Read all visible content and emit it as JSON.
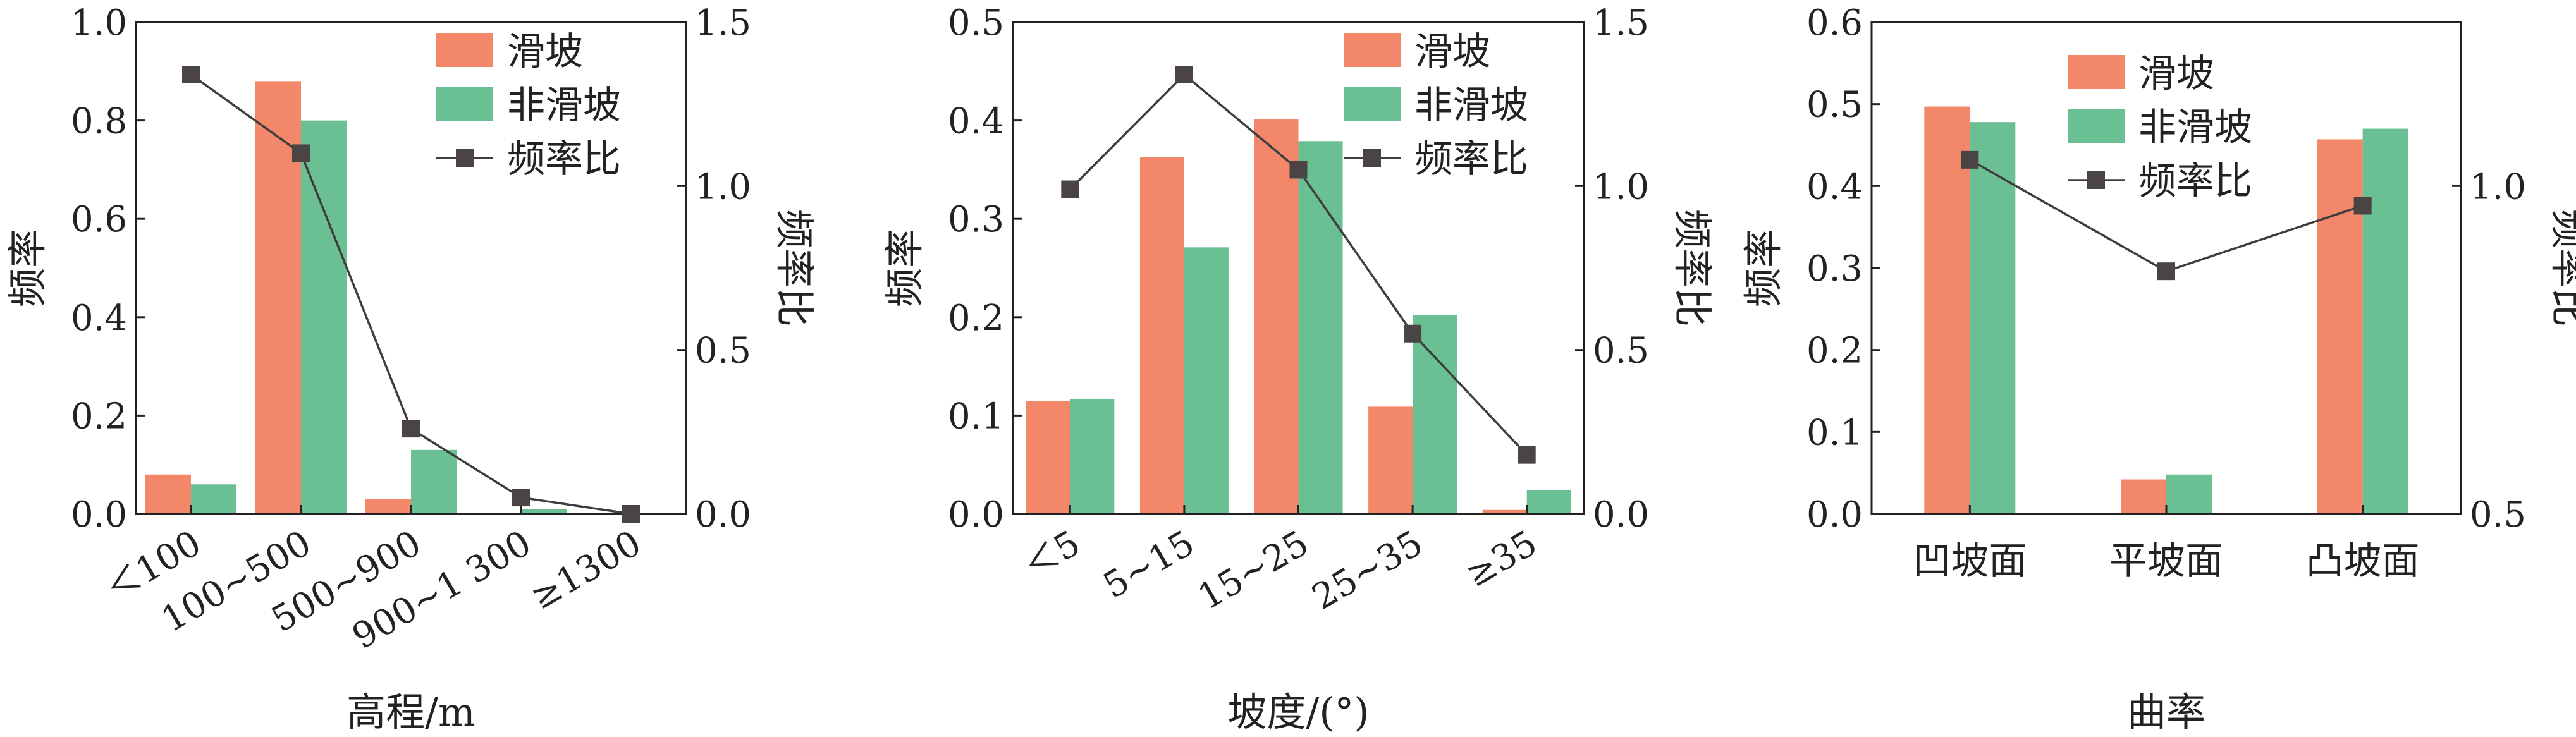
{
  "colors": {
    "landslide": "#F2876A",
    "non_landslide": "#6ABF93",
    "ratio_line": "#3d3d3d",
    "ratio_marker": "#4a4444",
    "axis": "#222222"
  },
  "chart_data": [
    {
      "type": "bar",
      "xlabel": "高程/m",
      "ylabel": "频率",
      "y2label": "频率比",
      "ylim": [
        0,
        1.0
      ],
      "yticks": [
        "0.0",
        "0.2",
        "0.4",
        "0.6",
        "0.8",
        "1.0"
      ],
      "y2lim": [
        0,
        1.5
      ],
      "y2ticks": [
        "0.0",
        "0.5",
        "1.0",
        "1.5"
      ],
      "categories": [
        "＜100",
        "100~500",
        "500~900",
        "900~1 300",
        "≥1300"
      ],
      "tick_rotation": -30,
      "legend_position": "top-right",
      "series": [
        {
          "name": "滑坡",
          "kind": "bar",
          "axis": "left",
          "values": [
            0.08,
            0.88,
            0.03,
            0.0,
            0.0
          ]
        },
        {
          "name": "非滑坡",
          "kind": "bar",
          "axis": "left",
          "values": [
            0.06,
            0.8,
            0.13,
            0.01,
            0.0
          ]
        },
        {
          "name": "频率比",
          "kind": "line",
          "axis": "right",
          "values": [
            1.34,
            1.1,
            0.26,
            0.05,
            0.0
          ]
        }
      ]
    },
    {
      "type": "bar",
      "xlabel": "坡度/(°)",
      "ylabel": "频率",
      "y2label": "频率比",
      "ylim": [
        0,
        0.5
      ],
      "yticks": [
        "0.0",
        "0.1",
        "0.2",
        "0.3",
        "0.4",
        "0.5"
      ],
      "y2lim": [
        0,
        1.5
      ],
      "y2ticks": [
        "0.0",
        "0.5",
        "1.0",
        "1.5"
      ],
      "categories": [
        "＜5",
        "5~15",
        "15~25",
        "25~35",
        "≥35"
      ],
      "tick_rotation": -30,
      "legend_position": "top-right",
      "series": [
        {
          "name": "滑坡",
          "kind": "bar",
          "axis": "left",
          "values": [
            0.115,
            0.363,
            0.401,
            0.109,
            0.004
          ]
        },
        {
          "name": "非滑坡",
          "kind": "bar",
          "axis": "left",
          "values": [
            0.117,
            0.271,
            0.379,
            0.202,
            0.024
          ]
        },
        {
          "name": "频率比",
          "kind": "line",
          "axis": "right",
          "values": [
            0.99,
            1.34,
            1.05,
            0.55,
            0.18
          ]
        }
      ]
    },
    {
      "type": "bar",
      "xlabel": "曲率",
      "ylabel": "频率",
      "y2label": "频率比",
      "ylim": [
        0,
        0.6
      ],
      "yticks": [
        "0.0",
        "0.1",
        "0.2",
        "0.3",
        "0.4",
        "0.5",
        "0.6"
      ],
      "y2lim": [
        0.5,
        1.25
      ],
      "y2ticks": [
        "0.5",
        "1.0"
      ],
      "categories": [
        "凹坡面",
        "平坡面",
        "凸坡面"
      ],
      "tick_rotation": 0,
      "legend_position": "top-center",
      "series": [
        {
          "name": "滑坡",
          "kind": "bar",
          "axis": "left",
          "values": [
            0.497,
            0.042,
            0.457
          ]
        },
        {
          "name": "非滑坡",
          "kind": "bar",
          "axis": "left",
          "values": [
            0.478,
            0.048,
            0.47
          ]
        },
        {
          "name": "频率比",
          "kind": "line",
          "axis": "right",
          "values": [
            1.04,
            0.87,
            0.97
          ]
        }
      ]
    }
  ]
}
